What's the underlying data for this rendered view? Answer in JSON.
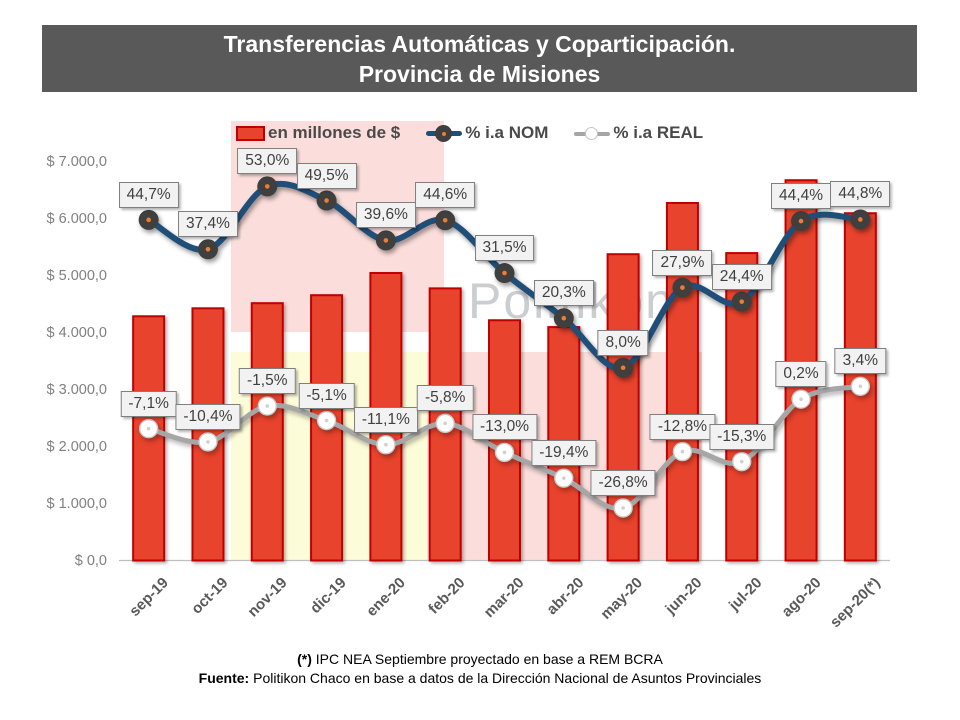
{
  "title": {
    "line1": "Transferencias Automáticas y Coparticipación.",
    "line2": "Provincia de Misiones"
  },
  "legend": {
    "bars_label": "en millones de $",
    "nom_label": "% i.a NOM",
    "real_label": "% i.a REAL"
  },
  "watermark": "Politikon",
  "chart_data": {
    "type": "combo-bar-line",
    "title": "Transferencias Automáticas y Coparticipación. Provincia de Misiones",
    "categories": [
      "sep-19",
      "oct-19",
      "nov-19",
      "dic-19",
      "ene-20",
      "feb-20",
      "mar-20",
      "abr-20",
      "may-20",
      "jun-20",
      "jul-20",
      "ago-20",
      "sep-20(*)"
    ],
    "bar_series": {
      "name": "en millones de $",
      "axis": "primary",
      "values": [
        4290,
        4430,
        4520,
        4660,
        5050,
        4780,
        4220,
        4100,
        5380,
        6280,
        5400,
        6680,
        6100
      ]
    },
    "line_series": [
      {
        "name": "% i.a NOM",
        "axis": "secondary",
        "values": [
          44.7,
          37.4,
          53.0,
          49.5,
          39.6,
          44.6,
          31.5,
          20.3,
          8.0,
          27.9,
          24.4,
          44.4,
          44.8
        ],
        "labels": [
          "44,7%",
          "37,4%",
          "53,0%",
          "49,5%",
          "39,6%",
          "44,6%",
          "31,5%",
          "20,3%",
          "8,0%",
          "27,9%",
          "24,4%",
          "44,4%",
          "44,8%"
        ]
      },
      {
        "name": "% i.a REAL",
        "axis": "secondary",
        "values": [
          -7.1,
          -10.4,
          -1.5,
          -5.1,
          -11.1,
          -5.8,
          -13.0,
          -19.4,
          -26.8,
          -12.8,
          -15.3,
          0.2,
          3.4
        ],
        "labels": [
          "-7,1%",
          "-10,4%",
          "-1,5%",
          "-5,1%",
          "-11,1%",
          "-5,8%",
          "-13,0%",
          "-19,4%",
          "-26,8%",
          "-12,8%",
          "-15,3%",
          "0,2%",
          "3,4%"
        ]
      }
    ],
    "y_axis": {
      "ticks": [
        "$ 7.000,0",
        "$ 6.000,0",
        "$ 5.000,0",
        "$ 4.000,0",
        "$ 3.000,0",
        "$ 2.000,0",
        "$ 1.000,0",
        "$ 0,0"
      ],
      "min": 0,
      "max": 7000,
      "tick_step": 1000
    },
    "secondary_axis_visible": false,
    "grid": false,
    "legend_position": "top"
  },
  "footnote": {
    "line1_prefix": "(*)",
    "line1_text": " IPC NEA Septiembre proyectado en base a REM BCRA",
    "line2_prefix": "Fuente:",
    "line2_text": " Politikon Chaco en base a datos de la Dirección Nacional de Asuntos Provinciales"
  },
  "colors": {
    "title_bg": "#595959",
    "bar_fill": "#E8432C",
    "bar_border": "#C00000",
    "nom_line": "#1F4E79",
    "nom_marker": "#3F3F3F",
    "nom_marker_dot": "#ED7D31",
    "real_line": "#A6A6A6",
    "real_marker_fill": "#FFFFFF",
    "real_marker_border": "#C9C9C9",
    "label_box_bg": "#F2F2F2",
    "label_box_border": "#7F7F7F",
    "highlight_pink": "#FBDEDB",
    "highlight_yellow": "#FDFCD9",
    "axis_text": "#808080",
    "category_text": "#595959",
    "axis_line": "#BFBFBF"
  }
}
